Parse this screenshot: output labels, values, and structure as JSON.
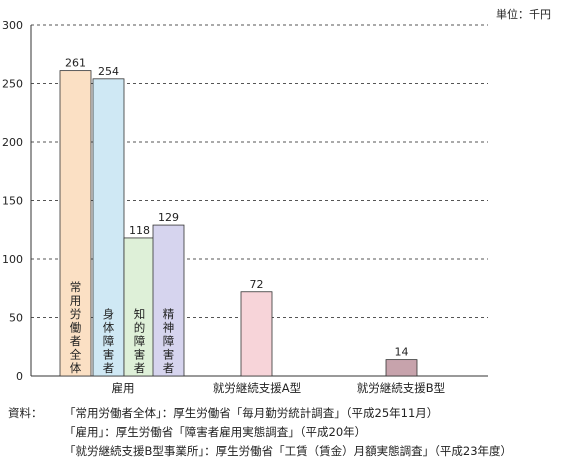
{
  "unit_label": "単位：千円",
  "chart_data": {
    "type": "bar",
    "ylim": [
      0,
      300
    ],
    "yticks": [
      "0",
      "50",
      "100",
      "150",
      "200",
      "250",
      "300"
    ],
    "grid": true,
    "groups": [
      {
        "name": "雇用",
        "bars": [
          {
            "label": "常用労働者全体",
            "value": 261,
            "color": "#fbe0c4"
          },
          {
            "label": "身体障害者",
            "value": 254,
            "color": "#cfe8f4"
          },
          {
            "label": "知的障害者",
            "value": 118,
            "color": "#def0d8"
          },
          {
            "label": "精神障害者",
            "value": 129,
            "color": "#d6d4ee"
          }
        ]
      },
      {
        "name": "就労継続支援A型",
        "bars": [
          {
            "label": "",
            "value": 72,
            "color": "#f7d4d9"
          }
        ]
      },
      {
        "name": "就労継続支援B型",
        "bars": [
          {
            "label": "",
            "value": 14,
            "color": "#c7a3ac"
          }
        ]
      }
    ]
  },
  "source": {
    "label": "資料：",
    "lines": [
      "「常用労働者全体」：厚生労働省「毎月勤労統計調査」（平成25年11月）",
      "「雇用」：厚生労働省「障害者雇用実態調査」（平成20年）",
      "「就労継続支援B型事業所」：厚生労働省「工賃（賃金）月額実態調査」（平成23年度）"
    ]
  }
}
